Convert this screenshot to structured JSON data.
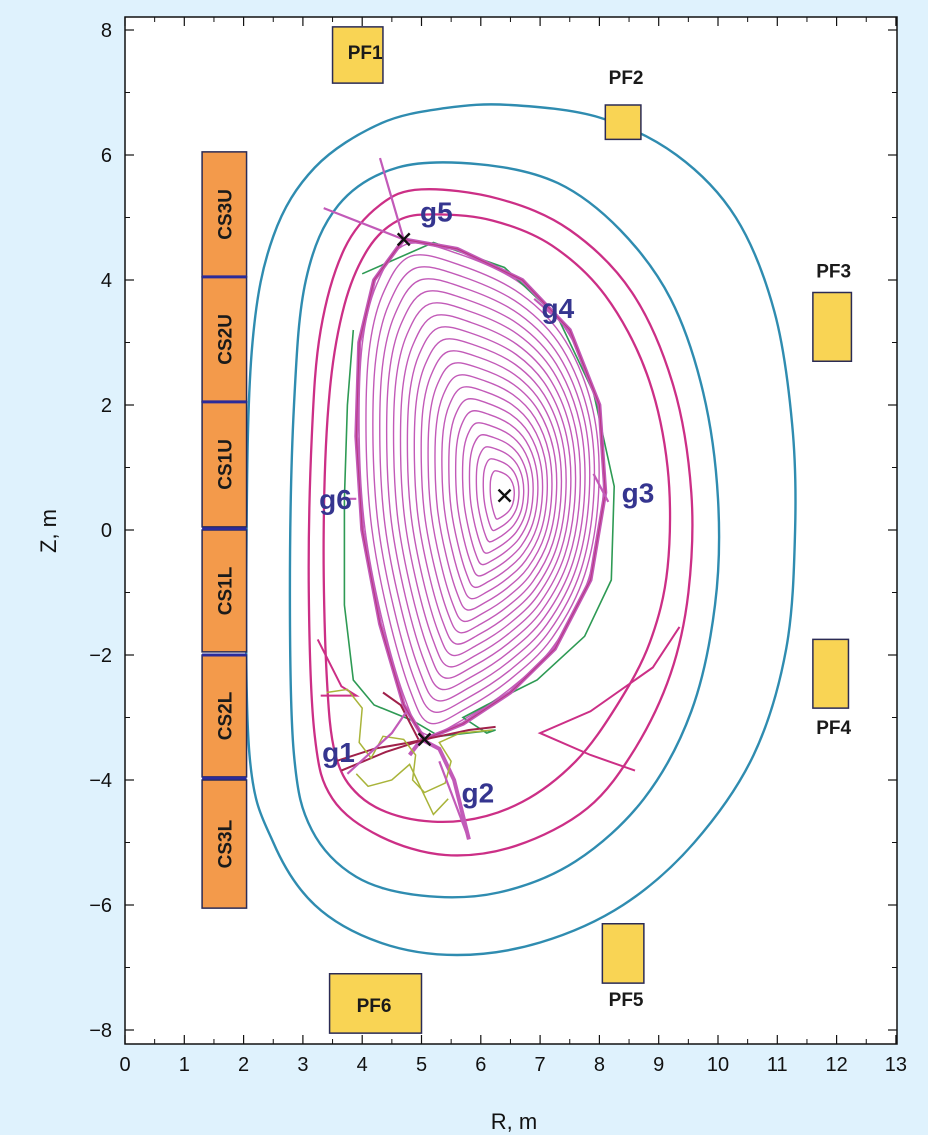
{
  "chart_data": {
    "type": "diagram",
    "xlabel": "R, m",
    "ylabel": "Z, m",
    "xlim": [
      0,
      13
    ],
    "ylim": [
      -8,
      8
    ],
    "x_ticks": [
      "0",
      "1",
      "2",
      "3",
      "4",
      "5",
      "6",
      "7",
      "8",
      "9",
      "10",
      "11",
      "12",
      "13"
    ],
    "y_ticks": [
      {
        "v": 8,
        "t": "8"
      },
      {
        "v": 6,
        "t": "6"
      },
      {
        "v": 4,
        "t": "4"
      },
      {
        "v": 2,
        "t": "2"
      },
      {
        "v": 0,
        "t": "0"
      },
      {
        "v": -2,
        "t": "−2"
      },
      {
        "v": -4,
        "t": "−4"
      },
      {
        "v": -6,
        "t": "−6"
      },
      {
        "v": -8,
        "t": "−8"
      }
    ],
    "colors": {
      "cs_coil_fill": "#f39a4b",
      "pf_coil_fill": "#f9d454",
      "coil_edge": "#2b2b55",
      "first_wall": "#2f8cb0",
      "separatrix_band": "#cc2f86",
      "flux_surfaces": "#c25ab8",
      "reference_contour": "#2e9a54",
      "divertor_contour": "#a9b43a",
      "gap_label": "#35358f"
    },
    "cs_coils": [
      {
        "label": "CS3U",
        "r0": 1.3,
        "r1": 2.05,
        "z0": 4.05,
        "z1": 6.05
      },
      {
        "label": "CS2U",
        "r0": 1.3,
        "r1": 2.05,
        "z0": 2.05,
        "z1": 4.05
      },
      {
        "label": "CS1U",
        "r0": 1.3,
        "r1": 2.05,
        "z0": 0.05,
        "z1": 2.05
      },
      {
        "label": "CS1L",
        "r0": 1.3,
        "r1": 2.05,
        "z0": -1.95,
        "z1": 0.0
      },
      {
        "label": "CS2L",
        "r0": 1.3,
        "r1": 2.05,
        "z0": -3.95,
        "z1": -2.0
      },
      {
        "label": "CS3L",
        "r0": 1.3,
        "r1": 2.05,
        "z0": -6.05,
        "z1": -4.0
      }
    ],
    "pf_coils": [
      {
        "label": "PF1",
        "r0": 3.5,
        "r1": 4.35,
        "z0": 7.15,
        "z1": 8.05,
        "lr": 4.05,
        "lz": 7.65,
        "anchor": "middle"
      },
      {
        "label": "PF2",
        "r0": 8.1,
        "r1": 8.7,
        "z0": 6.25,
        "z1": 6.8,
        "lr": 8.45,
        "lz": 7.25,
        "anchor": "middle"
      },
      {
        "label": "PF3",
        "r0": 11.6,
        "r1": 12.25,
        "z0": 2.7,
        "z1": 3.8,
        "lr": 11.95,
        "lz": 4.15,
        "anchor": "middle"
      },
      {
        "label": "PF4",
        "r0": 11.6,
        "r1": 12.2,
        "z0": -2.85,
        "z1": -1.75,
        "lr": 11.95,
        "lz": -3.15,
        "anchor": "middle"
      },
      {
        "label": "PF5",
        "r0": 8.05,
        "r1": 8.75,
        "z0": -7.25,
        "z1": -6.3,
        "lr": 8.45,
        "lz": -7.5,
        "anchor": "middle"
      },
      {
        "label": "PF6",
        "r0": 3.45,
        "r1": 5.0,
        "z0": -8.05,
        "z1": -7.1,
        "lr": 4.2,
        "lz": -7.6,
        "anchor": "middle"
      }
    ],
    "outer_contour": [
      [
        6.5,
        6.8
      ],
      [
        8.0,
        6.6
      ],
      [
        9.3,
        6.0
      ],
      [
        10.3,
        5.0
      ],
      [
        10.95,
        3.5
      ],
      [
        11.25,
        1.7
      ],
      [
        11.3,
        0.0
      ],
      [
        11.15,
        -1.9
      ],
      [
        10.6,
        -3.6
      ],
      [
        9.6,
        -5.0
      ],
      [
        8.4,
        -6.0
      ],
      [
        7.0,
        -6.6
      ],
      [
        5.6,
        -6.8
      ],
      [
        4.3,
        -6.6
      ],
      [
        3.2,
        -6.0
      ],
      [
        2.5,
        -5.0
      ],
      [
        2.1,
        -3.6
      ],
      [
        2.05,
        0.0
      ],
      [
        2.15,
        3.0
      ],
      [
        2.5,
        4.7
      ],
      [
        3.2,
        5.8
      ],
      [
        4.3,
        6.5
      ],
      [
        5.4,
        6.75
      ]
    ],
    "inner_wall": [
      [
        6.0,
        5.85
      ],
      [
        7.3,
        5.55
      ],
      [
        8.35,
        4.8
      ],
      [
        9.2,
        3.7
      ],
      [
        9.75,
        2.2
      ],
      [
        10.0,
        0.5
      ],
      [
        9.95,
        -1.2
      ],
      [
        9.55,
        -2.9
      ],
      [
        8.75,
        -4.3
      ],
      [
        7.6,
        -5.3
      ],
      [
        6.3,
        -5.8
      ],
      [
        5.0,
        -5.85
      ],
      [
        3.9,
        -5.55
      ],
      [
        3.15,
        -4.8
      ],
      [
        2.85,
        -3.6
      ],
      [
        2.78,
        -1.0
      ],
      [
        2.85,
        2.0
      ],
      [
        3.05,
        4.0
      ],
      [
        3.6,
        5.2
      ],
      [
        4.6,
        5.8
      ]
    ],
    "pink_bands": [
      [
        [
          5.0,
          5.45
        ],
        [
          6.3,
          5.3
        ],
        [
          7.5,
          4.8
        ],
        [
          8.55,
          3.8
        ],
        [
          9.25,
          2.3
        ],
        [
          9.55,
          0.6
        ],
        [
          9.5,
          -1.0
        ],
        [
          9.2,
          -2.3
        ],
        [
          8.6,
          -3.5
        ],
        [
          7.8,
          -4.45
        ],
        [
          6.6,
          -5.05
        ],
        [
          5.4,
          -5.2
        ],
        [
          4.3,
          -4.9
        ],
        [
          3.5,
          -4.3
        ],
        [
          3.2,
          -3.3
        ],
        [
          3.1,
          -1.0
        ],
        [
          3.15,
          1.5
        ],
        [
          3.3,
          3.2
        ],
        [
          3.7,
          4.5
        ],
        [
          4.3,
          5.2
        ]
      ],
      [
        [
          5.2,
          5.05
        ],
        [
          6.2,
          4.95
        ],
        [
          7.2,
          4.55
        ],
        [
          8.1,
          3.75
        ],
        [
          8.8,
          2.5
        ],
        [
          9.15,
          1.0
        ],
        [
          9.15,
          -0.6
        ],
        [
          8.85,
          -1.8
        ],
        [
          8.3,
          -2.8
        ],
        [
          7.6,
          -3.7
        ],
        [
          6.7,
          -4.35
        ],
        [
          5.7,
          -4.65
        ],
        [
          4.7,
          -4.6
        ],
        [
          3.95,
          -4.25
        ],
        [
          3.55,
          -3.6
        ],
        [
          3.4,
          -2.3
        ],
        [
          3.35,
          0.0
        ],
        [
          3.45,
          2.2
        ],
        [
          3.7,
          3.6
        ],
        [
          4.1,
          4.5
        ],
        [
          4.6,
          4.95
        ]
      ]
    ],
    "wall_notches": [
      [
        [
          9.35,
          -1.55
        ],
        [
          8.9,
          -2.2
        ],
        [
          7.85,
          -2.9
        ],
        [
          7.0,
          -3.25
        ],
        [
          7.85,
          -3.6
        ],
        [
          8.6,
          -3.85
        ]
      ],
      [
        [
          3.25,
          -1.75
        ],
        [
          3.65,
          -2.5
        ],
        [
          3.9,
          -2.65
        ],
        [
          3.3,
          -2.65
        ]
      ]
    ],
    "separatrix": [
      [
        4.7,
        4.65
      ],
      [
        5.6,
        4.5
      ],
      [
        6.7,
        4.0
      ],
      [
        7.5,
        3.2
      ],
      [
        8.0,
        2.0
      ],
      [
        8.1,
        0.6
      ],
      [
        7.85,
        -0.8
      ],
      [
        7.25,
        -1.9
      ],
      [
        6.5,
        -2.6
      ],
      [
        5.7,
        -3.1
      ],
      [
        5.05,
        -3.35
      ],
      [
        4.7,
        -2.8
      ],
      [
        4.3,
        -1.5
      ],
      [
        4.0,
        0.0
      ],
      [
        3.9,
        1.5
      ],
      [
        3.95,
        3.0
      ],
      [
        4.2,
        4.0
      ],
      [
        4.7,
        4.65
      ]
    ],
    "reference_contour": [
      [
        4.0,
        4.1
      ],
      [
        5.2,
        4.6
      ],
      [
        6.4,
        4.2
      ],
      [
        7.3,
        3.4
      ],
      [
        7.9,
        2.2
      ],
      [
        8.25,
        0.7
      ],
      [
        8.2,
        -0.8
      ],
      [
        7.75,
        -1.7
      ],
      [
        6.95,
        -2.4
      ],
      [
        6.1,
        -2.8
      ],
      [
        5.7,
        -3.0
      ],
      [
        6.1,
        -3.25
      ],
      [
        6.25,
        -3.2
      ],
      [
        5.3,
        -3.3
      ],
      [
        4.85,
        -3.05
      ],
      [
        4.2,
        -2.8
      ],
      [
        3.85,
        -2.4
      ],
      [
        3.7,
        -1.2
      ],
      [
        3.7,
        0.5
      ],
      [
        3.75,
        2.0
      ],
      [
        3.85,
        3.2
      ]
    ],
    "divertor_legs": [
      [
        [
          3.55,
          -3.7
        ],
        [
          4.2,
          -3.5
        ],
        [
          4.8,
          -3.4
        ],
        [
          5.3,
          -3.3
        ],
        [
          5.8,
          -3.2
        ],
        [
          6.25,
          -3.15
        ]
      ],
      [
        [
          4.8,
          -3.6
        ],
        [
          5.0,
          -3.35
        ],
        [
          5.3,
          -3.5
        ],
        [
          5.55,
          -4.0
        ],
        [
          5.8,
          -4.95
        ]
      ],
      [
        [
          4.95,
          -3.35
        ],
        [
          4.65,
          -2.8
        ],
        [
          4.35,
          -2.6
        ]
      ],
      [
        [
          3.65,
          -3.85
        ],
        [
          4.4,
          -3.55
        ],
        [
          5.05,
          -3.35
        ]
      ]
    ],
    "divertor_contour": [
      [
        3.4,
        -2.6
      ],
      [
        3.75,
        -2.55
      ],
      [
        4.0,
        -2.85
      ],
      [
        3.95,
        -3.4
      ],
      [
        4.15,
        -3.65
      ],
      [
        4.35,
        -3.3
      ],
      [
        4.7,
        -3.35
      ],
      [
        4.9,
        -3.6
      ],
      [
        4.85,
        -4.0
      ],
      [
        5.05,
        -4.2
      ],
      [
        5.4,
        -4.05
      ],
      [
        5.5,
        -3.7
      ],
      [
        5.3,
        -3.4
      ],
      [
        5.65,
        -3.25
      ],
      [
        6.2,
        -3.2
      ]
    ],
    "divertor_contour_2": [
      [
        3.9,
        -3.9
      ],
      [
        4.1,
        -4.1
      ],
      [
        4.5,
        -4.0
      ],
      [
        4.8,
        -3.75
      ],
      [
        5.2,
        -4.55
      ],
      [
        5.45,
        -4.3
      ]
    ],
    "flux_center": [
      6.4,
      0.55
    ],
    "upper_xpoint": [
      4.7,
      4.65
    ],
    "lower_xpoint": [
      5.05,
      -3.35
    ],
    "gap_labels": [
      {
        "label": "g1",
        "r": 3.6,
        "z": -3.55
      },
      {
        "label": "g2",
        "r": 5.95,
        "z": -4.2
      },
      {
        "label": "g3",
        "r": 8.65,
        "z": 0.6
      },
      {
        "label": "g4",
        "r": 7.3,
        "z": 3.55
      },
      {
        "label": "g5",
        "r": 5.25,
        "z": 5.1
      },
      {
        "label": "g6",
        "r": 3.55,
        "z": 0.5
      }
    ],
    "gap_lines": [
      [
        [
          3.75,
          -3.9
        ],
        [
          4.5,
          -3.25
        ],
        [
          4.75,
          -2.9
        ]
      ],
      [
        [
          5.3,
          -3.7
        ],
        [
          5.8,
          -4.95
        ]
      ],
      [
        [
          7.9,
          0.9
        ],
        [
          8.15,
          0.45
        ]
      ],
      [
        [
          6.9,
          3.7
        ],
        [
          7.2,
          3.45
        ]
      ],
      [
        [
          4.3,
          5.95
        ],
        [
          4.7,
          4.65
        ],
        [
          3.35,
          5.15
        ]
      ],
      [
        [
          3.9,
          0.5
        ],
        [
          3.6,
          0.5
        ]
      ]
    ]
  }
}
